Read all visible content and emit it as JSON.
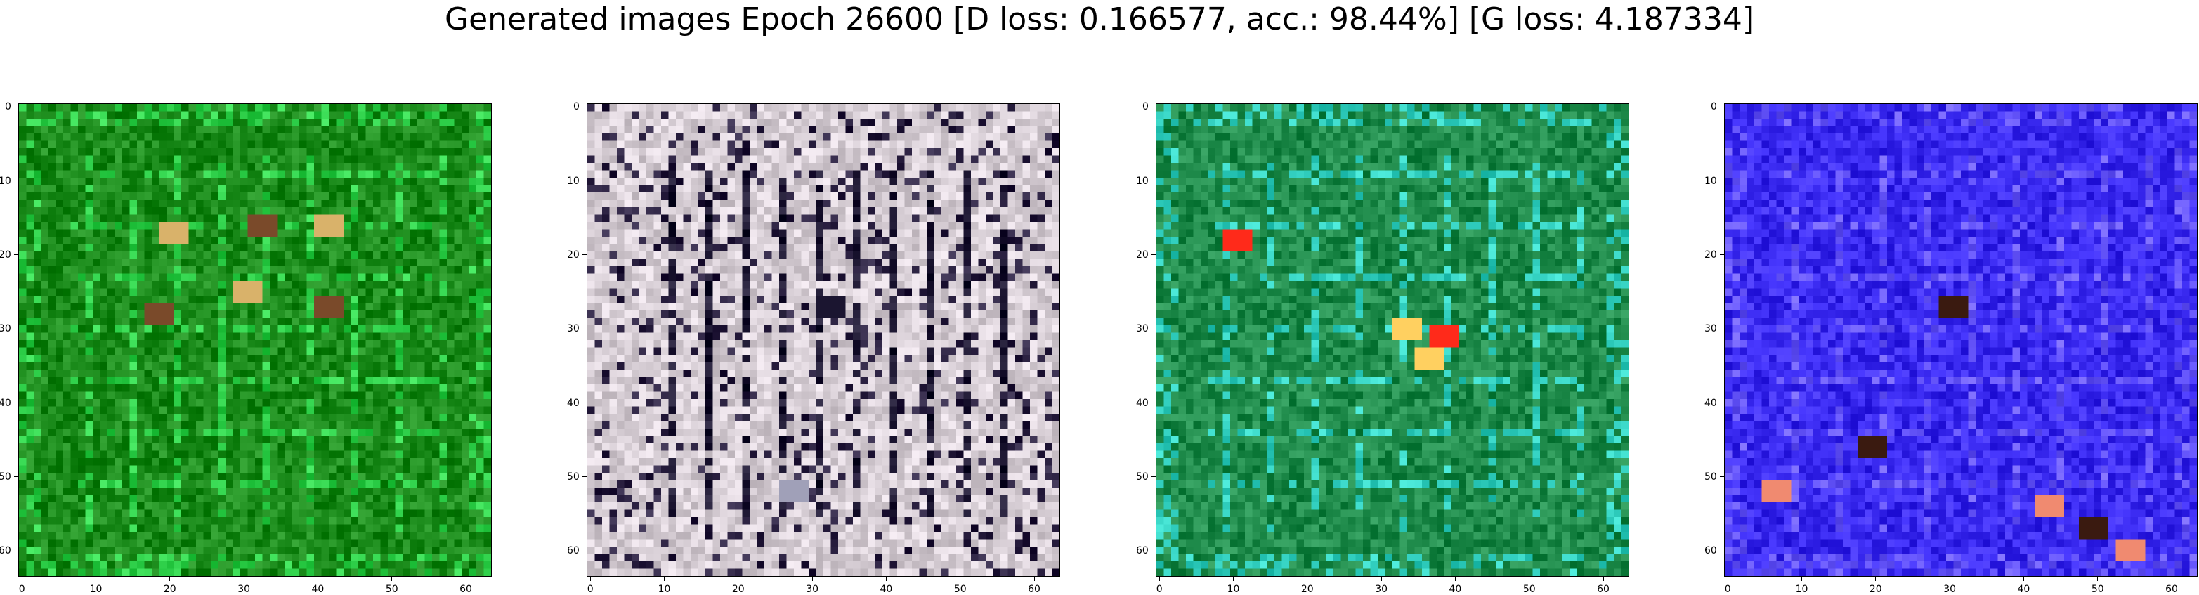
{
  "title": "Generated images Epoch 26600 [D loss: 0.166577, acc.: 98.44%] [G loss: 4.187334]",
  "panels": [
    {
      "name": "sample-1",
      "dominant_color": "#1a8a1a",
      "accent": "#2fd04a",
      "blob_colors": [
        "#d9b26a",
        "#7a4a2a"
      ]
    },
    {
      "name": "sample-2",
      "dominant_color": "#d8cfd6",
      "accent": "#2a2040",
      "blob_colors": [
        "#1b1530",
        "#a0a0b8"
      ]
    },
    {
      "name": "sample-3",
      "dominant_color": "#1e8a4a",
      "accent": "#33d0c0",
      "blob_colors": [
        "#ff2a1a",
        "#ffd060"
      ]
    },
    {
      "name": "sample-4",
      "dominant_color": "#3a2af0",
      "accent": "#6a5aff",
      "blob_colors": [
        "#3a1a10",
        "#f08a70"
      ]
    }
  ],
  "ticks": [
    "0",
    "10",
    "20",
    "30",
    "40",
    "50",
    "60"
  ],
  "axis_range": [
    0,
    63
  ]
}
